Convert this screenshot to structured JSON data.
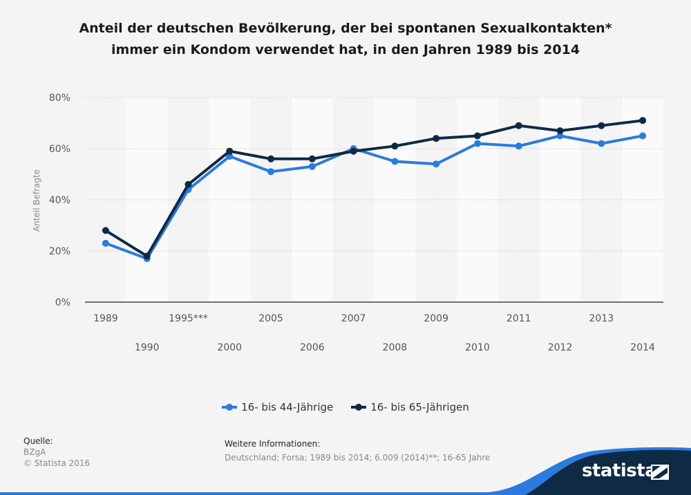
{
  "chart_data": {
    "type": "line",
    "title": "Anteil der deutschen Bevölkerung, der bei spontanen Sexualkontakten* immer ein Kondom verwendet hat, in den Jahren 1989 bis 2014",
    "categories": [
      "1989",
      "1990",
      "1995***",
      "2000",
      "2005",
      "2006",
      "2007",
      "2008",
      "2009",
      "2010",
      "2011",
      "2012",
      "2013",
      "2014"
    ],
    "series": [
      {
        "name": "16- bis 44-Jährige",
        "color": "#2b7bde",
        "values": [
          23,
          17,
          44,
          57,
          51,
          53,
          60,
          55,
          54,
          62,
          61,
          65,
          62,
          65
        ]
      },
      {
        "name": "16- bis 65-Jährigen",
        "color": "#0e2a45",
        "values": [
          28,
          18,
          46,
          59,
          56,
          56,
          59,
          61,
          64,
          65,
          69,
          67,
          69,
          71
        ]
      }
    ],
    "ylabel": "Anteil Befragte",
    "xlabel": "",
    "ylim": [
      0,
      80
    ],
    "yticks": [
      "0%",
      "20%",
      "40%",
      "60%",
      "80%"
    ],
    "ytick_values": [
      0,
      20,
      40,
      60,
      80
    ],
    "legend": "bottom-center",
    "grid": true
  },
  "source": {
    "heading": "Quelle:",
    "name": "BZgA",
    "copyright": "© Statista 2016"
  },
  "info": {
    "heading": "Weitere Informationen:",
    "text": "Deutschland; Forsa; 1989 bis 2014; 6.009 (2014)**; 16-65 Jahre"
  },
  "brand": {
    "name": "statista"
  }
}
